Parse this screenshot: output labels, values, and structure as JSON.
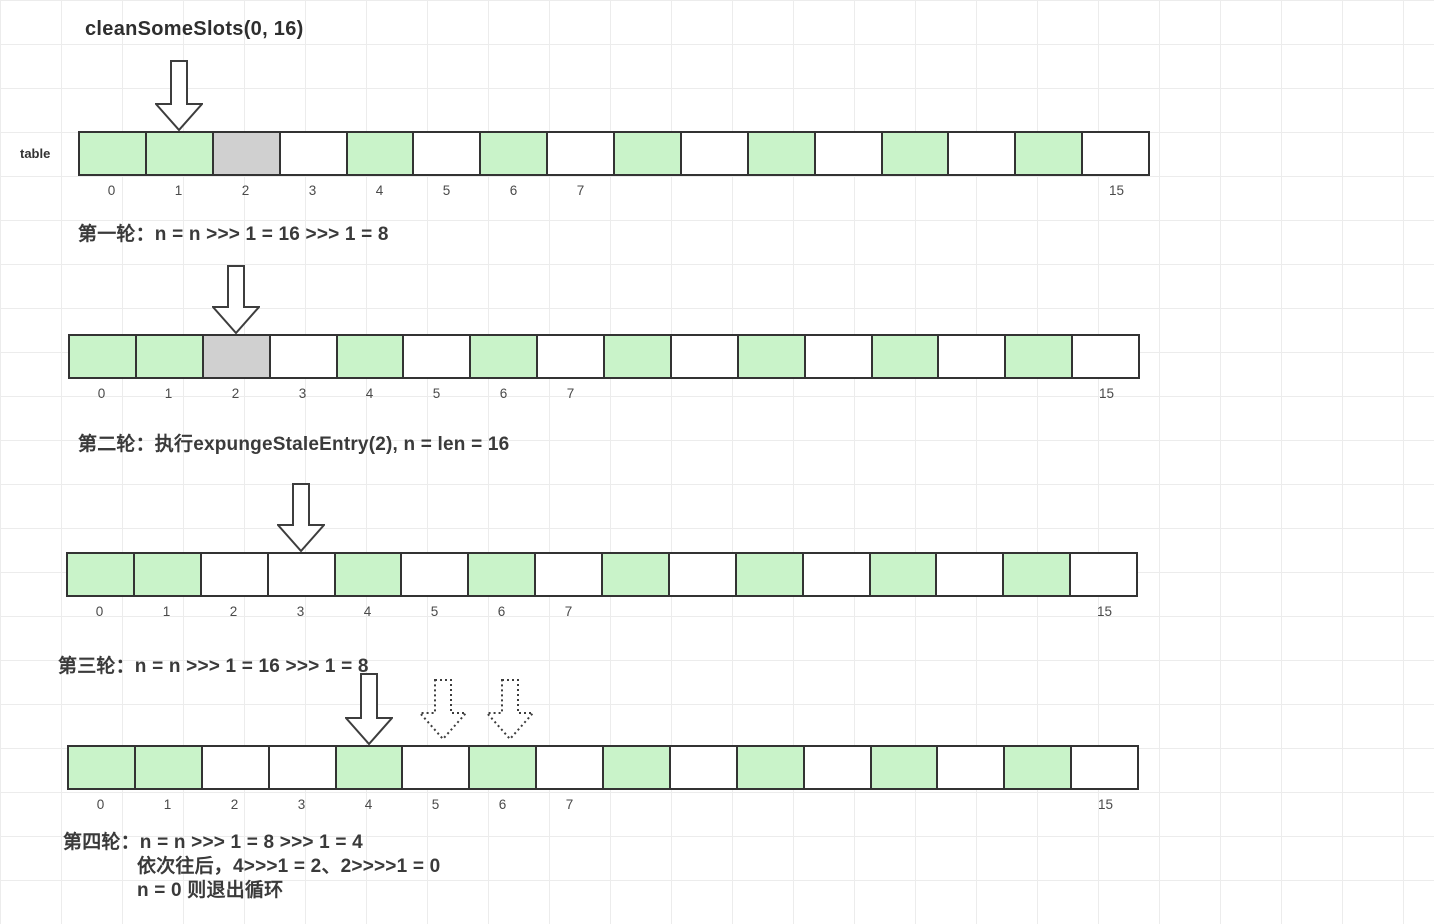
{
  "title": "cleanSomeSlots(0, 16)",
  "table_label": "table",
  "colors": {
    "entry": "#c9f3c9",
    "stale": "#d0d0d0",
    "empty": "#ffffff",
    "cell_border": "#333333",
    "arrow_stroke": "#3d3d3d",
    "caption_text": "#3a3a3a",
    "index_text": "#4a4a4a"
  },
  "index_marks": [
    {
      "label": "0",
      "slot": 0
    },
    {
      "label": "1",
      "slot": 1
    },
    {
      "label": "2",
      "slot": 2
    },
    {
      "label": "3",
      "slot": 3
    },
    {
      "label": "4",
      "slot": 4
    },
    {
      "label": "5",
      "slot": 5
    },
    {
      "label": "6",
      "slot": 6
    },
    {
      "label": "7",
      "slot": 7
    },
    {
      "label": "15",
      "slot": 15
    }
  ],
  "rows": [
    {
      "arrows": [
        {
          "style": "solid",
          "slot": 1
        }
      ],
      "cells": [
        "entry",
        "entry",
        "stale",
        "empty",
        "entry",
        "empty",
        "entry",
        "empty",
        "entry",
        "empty",
        "entry",
        "empty",
        "entry",
        "empty",
        "entry",
        "empty"
      ],
      "caption_lines": [
        "第一轮：n = n >>> 1 = 16 >>>  1 = 8"
      ]
    },
    {
      "arrows": [
        {
          "style": "solid",
          "slot": 2
        }
      ],
      "cells": [
        "entry",
        "entry",
        "stale",
        "empty",
        "entry",
        "empty",
        "entry",
        "empty",
        "entry",
        "empty",
        "entry",
        "empty",
        "entry",
        "empty",
        "entry",
        "empty"
      ],
      "caption_lines": [
        "第二轮：执行expungeStaleEntry(2), n = len = 16"
      ]
    },
    {
      "arrows": [
        {
          "style": "solid",
          "slot": 3
        }
      ],
      "cells": [
        "entry",
        "entry",
        "empty",
        "empty",
        "entry",
        "empty",
        "entry",
        "empty",
        "entry",
        "empty",
        "entry",
        "empty",
        "entry",
        "empty",
        "entry",
        "empty"
      ],
      "caption_lines": [
        "第三轮：n = n >>> 1 = 16 >>> 1  = 8"
      ]
    },
    {
      "arrows": [
        {
          "style": "solid",
          "slot": 4
        },
        {
          "style": "dotted",
          "slot": 5
        },
        {
          "style": "dotted",
          "slot": 6
        }
      ],
      "cells": [
        "entry",
        "entry",
        "empty",
        "empty",
        "entry",
        "empty",
        "entry",
        "empty",
        "entry",
        "empty",
        "entry",
        "empty",
        "entry",
        "empty",
        "entry",
        "empty"
      ],
      "caption_lines": [
        "第四轮：n = n >>> 1 = 8 >>> 1 = 4",
        "依次往后，4>>>1 = 2、2>>>>1 = 0",
        "n = 0 则退出循环"
      ]
    }
  ]
}
